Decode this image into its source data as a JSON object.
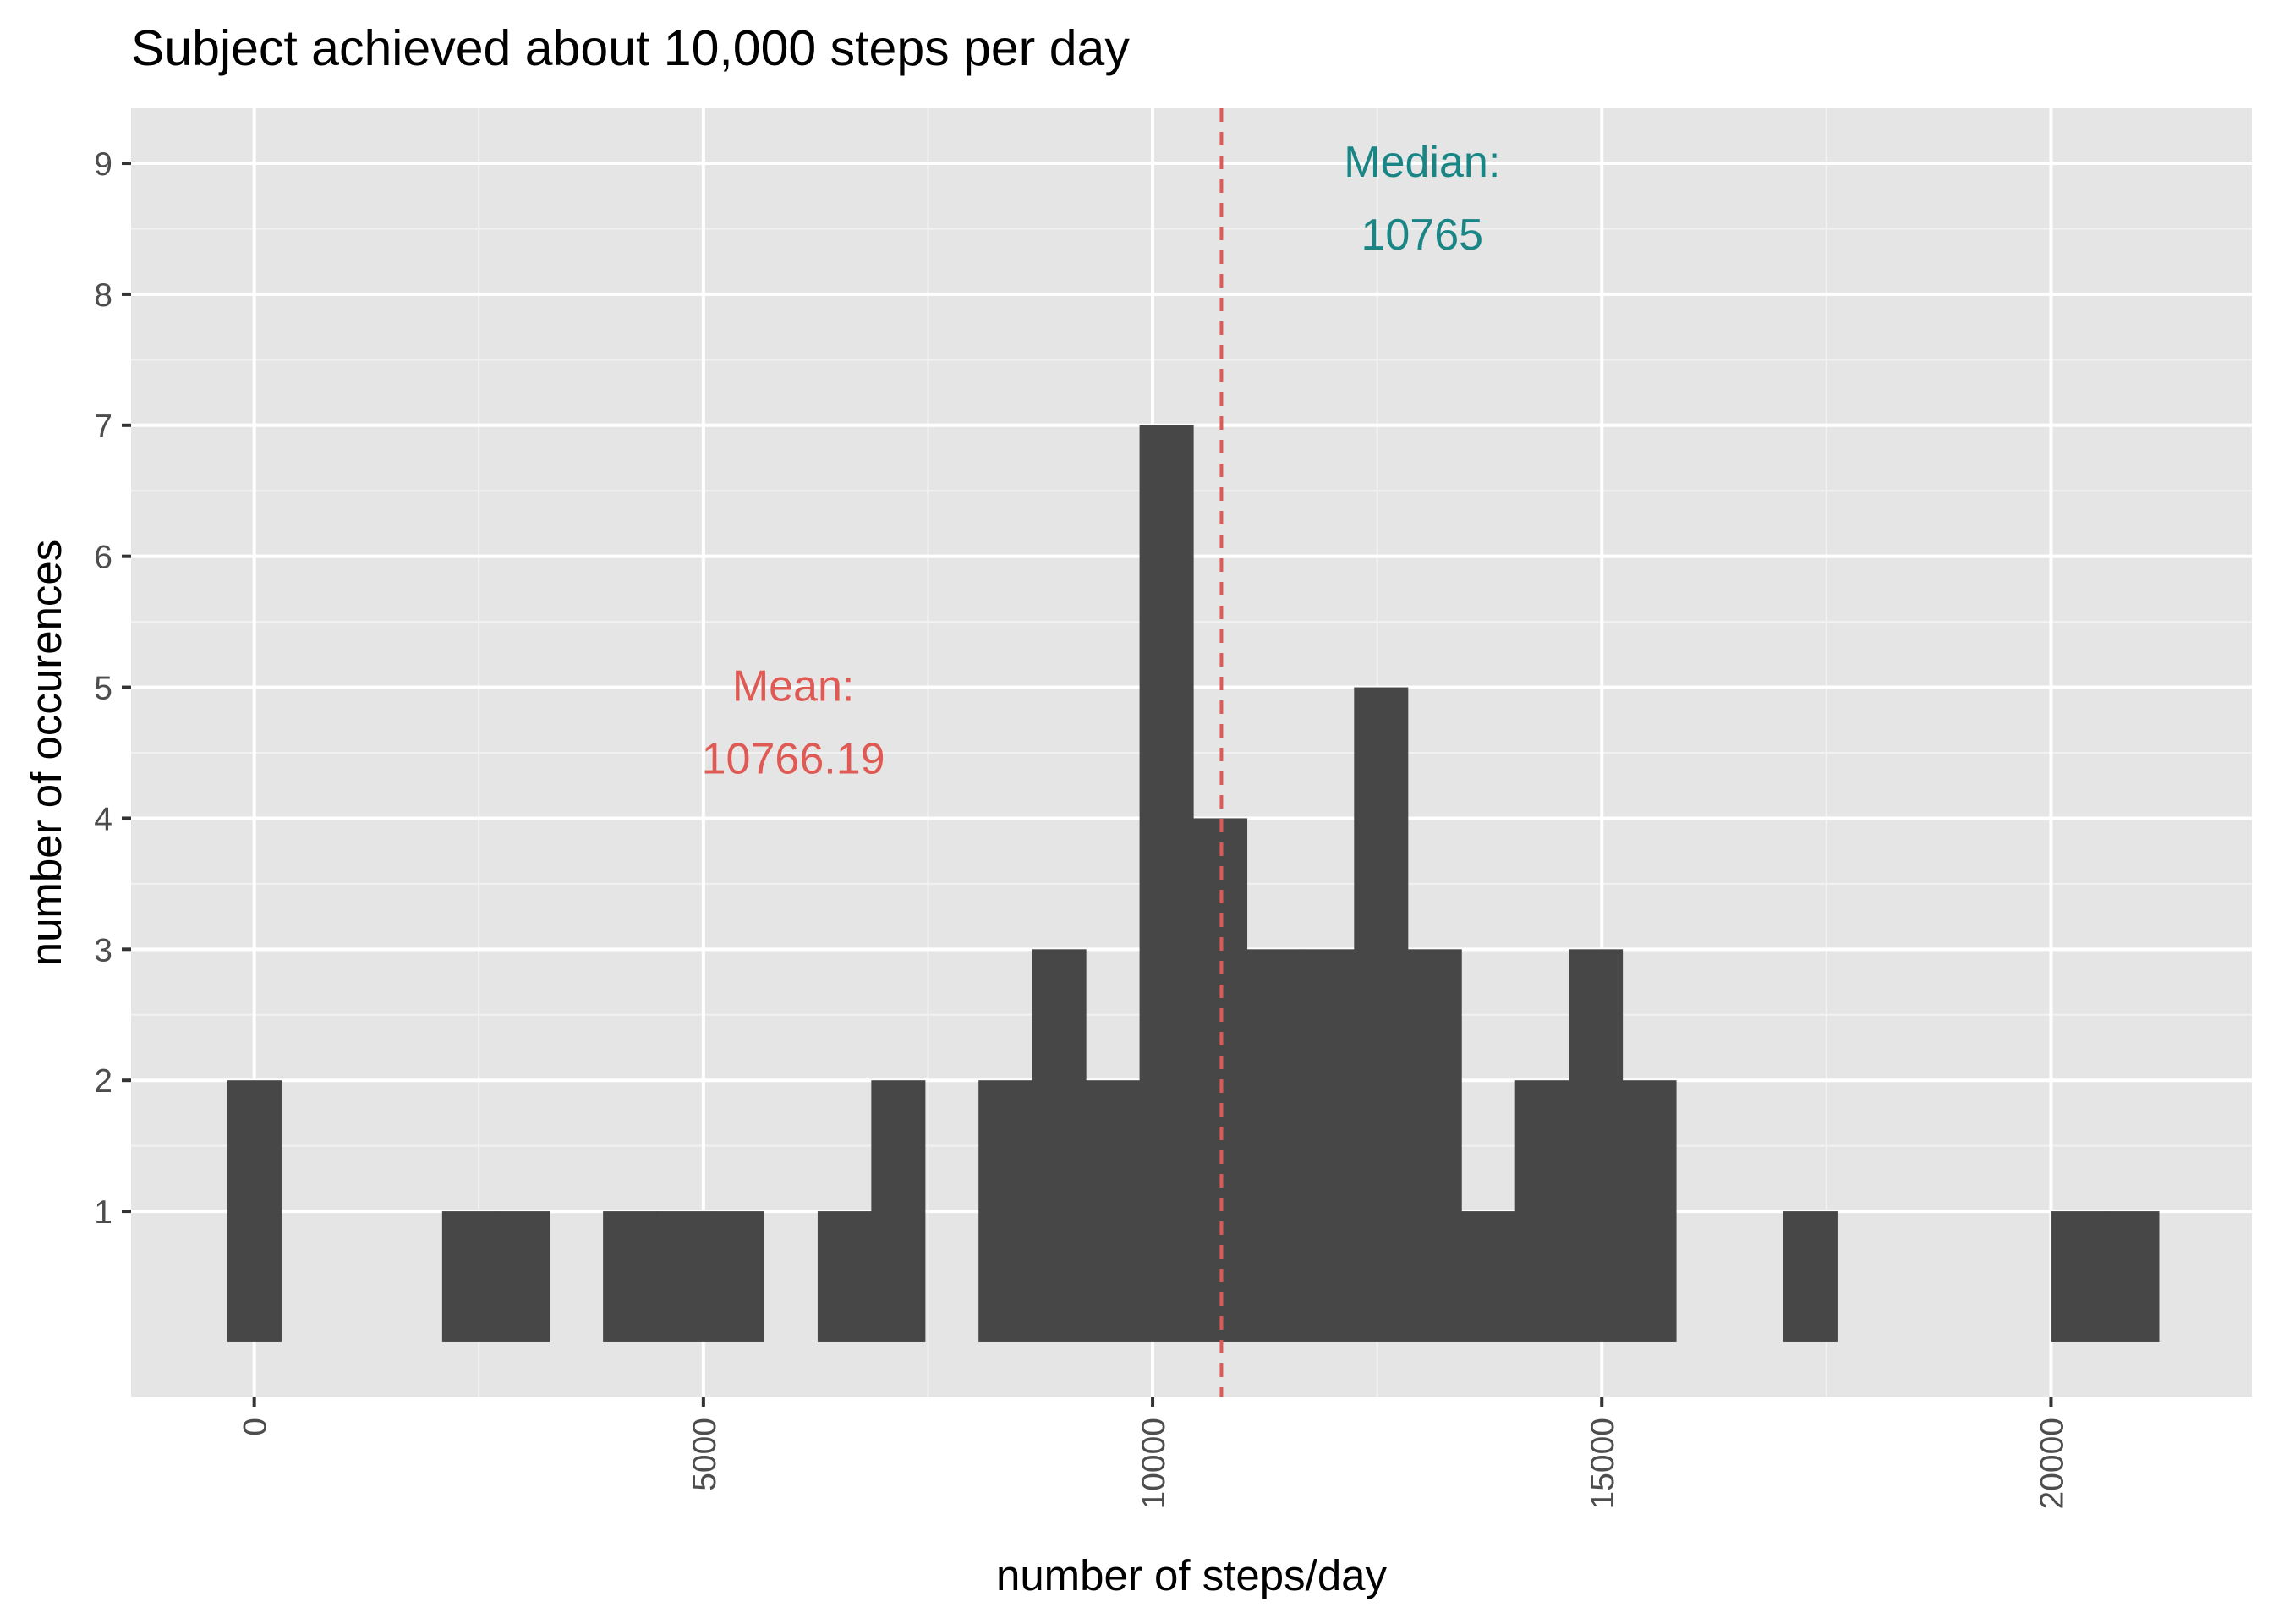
{
  "chart_data": {
    "type": "bar",
    "title": "Subject achieved about 10,000 steps per day",
    "xlabel": "number of steps/day",
    "ylabel": "number of occurences",
    "xlim": [
      -1371,
      22236
    ],
    "ylim": [
      -0.42,
      9.42
    ],
    "x_ticks": [
      0,
      5000,
      10000,
      15000,
      20000
    ],
    "y_ticks": [
      1,
      2,
      3,
      4,
      5,
      6,
      7,
      8,
      9
    ],
    "bin_width": 597,
    "grid": true,
    "bars": [
      {
        "x": 0,
        "count": 2
      },
      {
        "x": 2390,
        "count": 1
      },
      {
        "x": 2987,
        "count": 1
      },
      {
        "x": 4181,
        "count": 1
      },
      {
        "x": 4778,
        "count": 1
      },
      {
        "x": 5375,
        "count": 1
      },
      {
        "x": 6570,
        "count": 1
      },
      {
        "x": 7167,
        "count": 2
      },
      {
        "x": 8361,
        "count": 2
      },
      {
        "x": 8958,
        "count": 3
      },
      {
        "x": 9555,
        "count": 2
      },
      {
        "x": 10153,
        "count": 7
      },
      {
        "x": 10750,
        "count": 4
      },
      {
        "x": 11347,
        "count": 3
      },
      {
        "x": 11944,
        "count": 3
      },
      {
        "x": 12541,
        "count": 5
      },
      {
        "x": 13138,
        "count": 3
      },
      {
        "x": 13736,
        "count": 1
      },
      {
        "x": 14333,
        "count": 2
      },
      {
        "x": 14930,
        "count": 3
      },
      {
        "x": 15527,
        "count": 2
      },
      {
        "x": 17319,
        "count": 1
      },
      {
        "x": 20304,
        "count": 1
      },
      {
        "x": 20901,
        "count": 1
      }
    ],
    "reference_lines": [
      {
        "x": 10766.19,
        "style": "dashed",
        "color": "#e05a55"
      }
    ],
    "annotations": [
      {
        "label": "Mean:",
        "value": "10766.19",
        "x": 6000,
        "y": 5.0,
        "color": "#e05a55"
      },
      {
        "label": "Median:",
        "value": "10765",
        "x": 13000,
        "y": 9.0,
        "color": "#1a8585"
      }
    ],
    "colors": {
      "bar": "#474747",
      "panel": "#e5e5e5",
      "grid": "#ffffff",
      "mean": "#e05a55",
      "median": "#1a8585"
    }
  }
}
